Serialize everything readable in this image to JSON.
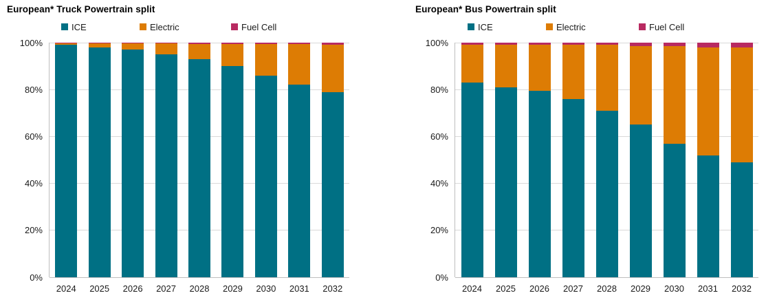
{
  "page": {
    "background": "#ffffff"
  },
  "chart_data": [
    {
      "type": "bar",
      "subtype": "stacked-100-percent-column",
      "title": "European* Truck Powertrain split",
      "categories": [
        "2024",
        "2025",
        "2026",
        "2027",
        "2028",
        "2029",
        "2030",
        "2031",
        "2032"
      ],
      "series": [
        {
          "name": "ICE",
          "color": "#007084",
          "values": [
            99,
            98,
            97,
            95,
            93,
            90,
            86,
            82,
            79
          ]
        },
        {
          "name": "Electric",
          "color": "#dd7c04",
          "values": [
            0.7,
            1.7,
            2.6,
            4.6,
            6.5,
            9.5,
            13.5,
            17.3,
            20.2
          ]
        },
        {
          "name": "Fuel Cell",
          "color": "#b82a61",
          "values": [
            0.3,
            0.3,
            0.4,
            0.4,
            0.5,
            0.5,
            0.5,
            0.7,
            0.8
          ]
        }
      ],
      "xlabel": "",
      "ylabel": "",
      "ylim": [
        0,
        100
      ],
      "y_ticks": [
        "100%",
        "80%",
        "60%",
        "40%",
        "20%",
        "0%"
      ],
      "grid": true,
      "legend_position": "top"
    },
    {
      "type": "bar",
      "subtype": "stacked-100-percent-column",
      "title": "European* Bus Powertrain split",
      "categories": [
        "2024",
        "2025",
        "2026",
        "2027",
        "2028",
        "2029",
        "2030",
        "2031",
        "2032"
      ],
      "series": [
        {
          "name": "ICE",
          "color": "#007084",
          "values": [
            83,
            81,
            79.5,
            76,
            71,
            65,
            57,
            52,
            49
          ]
        },
        {
          "name": "Electric",
          "color": "#dd7c04",
          "values": [
            16,
            18,
            19.5,
            23,
            28,
            33.5,
            41.5,
            46,
            49
          ]
        },
        {
          "name": "Fuel Cell",
          "color": "#b82a61",
          "values": [
            1,
            1,
            1,
            1,
            1,
            1.5,
            1.5,
            2,
            2
          ]
        }
      ],
      "xlabel": "",
      "ylabel": "",
      "ylim": [
        0,
        100
      ],
      "y_ticks": [
        "100%",
        "80%",
        "60%",
        "40%",
        "20%",
        "0%"
      ],
      "grid": true,
      "legend_position": "top"
    }
  ]
}
